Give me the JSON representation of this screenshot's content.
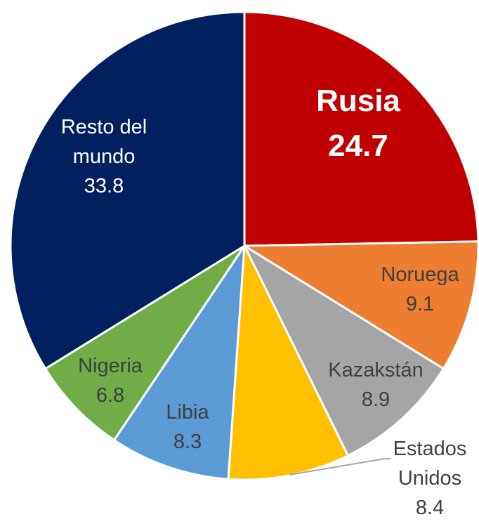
{
  "chart_data": {
    "type": "pie",
    "categories": [
      "Rusia",
      "Noruega",
      "Kazakstán",
      "Estados Unidos",
      "Libia",
      "Nigeria",
      "Resto del mundo"
    ],
    "values": [
      24.7,
      9.1,
      8.9,
      8.4,
      8.3,
      6.8,
      33.8
    ],
    "colors": [
      "#c00000",
      "#ed7d31",
      "#a5a5a5",
      "#ffc000",
      "#5b9bd5",
      "#70ad47",
      "#002060"
    ]
  }
}
